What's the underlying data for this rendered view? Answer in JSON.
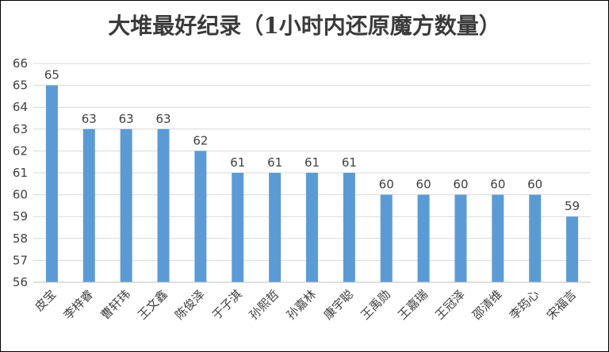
{
  "chart_data": {
    "type": "bar",
    "title": "大堆最好纪录（1小时内还原魔方数量）",
    "categories": [
      "皮宝",
      "李梓睿",
      "曹轩玮",
      "王文鑫",
      "陈俊泽",
      "于子淇",
      "孙熙哲",
      "孙嘉林",
      "康宇聪",
      "王禹勋",
      "王嘉瑞",
      "王冠泽",
      "邵清维",
      "李筠心",
      "宋福言"
    ],
    "values": [
      65,
      63,
      63,
      63,
      62,
      61,
      61,
      61,
      61,
      60,
      60,
      60,
      60,
      60,
      59
    ],
    "ylim": [
      56,
      66
    ],
    "yticks": [
      56,
      57,
      58,
      59,
      60,
      61,
      62,
      63,
      64,
      65,
      66
    ],
    "grid": true,
    "legend": "none",
    "bar_color": "#5b9bd5"
  }
}
